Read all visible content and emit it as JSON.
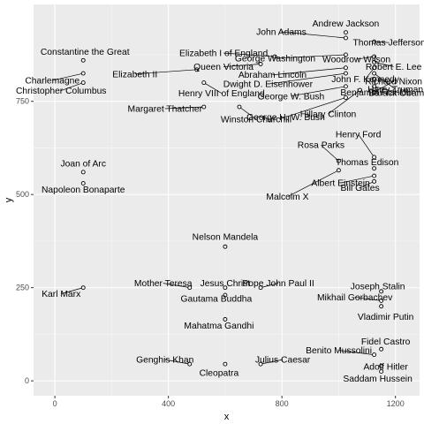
{
  "chart_data": {
    "type": "scatter",
    "title": "",
    "xlabel": "x",
    "ylabel": "y",
    "xlim": [
      -75,
      1285
    ],
    "ylim": [
      -40,
      1010
    ],
    "x_ticks": [
      0,
      400,
      800,
      1200
    ],
    "y_ticks": [
      0,
      250,
      500,
      750
    ],
    "grid": true,
    "colors": {
      "panel": "#ebebeb",
      "grid": "#ffffff",
      "point_fill": "#ffffff",
      "point_stroke": "#000000"
    },
    "points": [
      {
        "label": "Andrew Jackson",
        "x": 1025,
        "y": 935
      },
      {
        "label": "John Adams",
        "x": 1025,
        "y": 920
      },
      {
        "label": "Thomas Jefferson",
        "x": 1125,
        "y": 910
      },
      {
        "label": "George Washington",
        "x": 1025,
        "y": 875
      },
      {
        "label": "Woodrow Wilson",
        "x": 1125,
        "y": 870
      },
      {
        "label": "Elizabeth I of England",
        "x": 775,
        "y": 870
      },
      {
        "label": "Abraham Lincoln",
        "x": 1025,
        "y": 840
      },
      {
        "label": "Robert E. Lee",
        "x": 1125,
        "y": 855
      },
      {
        "label": "John F. Kennedy",
        "x": 1125,
        "y": 840
      },
      {
        "label": "Queen Victoria",
        "x": 725,
        "y": 850
      },
      {
        "label": "Harry Truman",
        "x": 1125,
        "y": 825
      },
      {
        "label": "Dwight D. Eisenhower",
        "x": 1025,
        "y": 825
      },
      {
        "label": "Benjamin Franklin",
        "x": 1125,
        "y": 810
      },
      {
        "label": "Constantine the Great",
        "x": 100,
        "y": 860
      },
      {
        "label": "Charlemagne",
        "x": 100,
        "y": 825
      },
      {
        "label": "Christopher Columbus",
        "x": 100,
        "y": 800
      },
      {
        "label": "Elizabeth II",
        "x": 500,
        "y": 835
      },
      {
        "label": "Henry VIII of England",
        "x": 525,
        "y": 800
      },
      {
        "label": "George W. Bush",
        "x": 1025,
        "y": 790
      },
      {
        "label": "Richard Nixon",
        "x": 1125,
        "y": 775
      },
      {
        "label": "Barack Obama",
        "x": 1125,
        "y": 790
      },
      {
        "label": "George H. W. Bush",
        "x": 1025,
        "y": 760
      },
      {
        "label": "Hillary Clinton",
        "x": 1075,
        "y": 780
      },
      {
        "label": "Margaret Thatcher",
        "x": 525,
        "y": 735
      },
      {
        "label": "Winston Churchill",
        "x": 650,
        "y": 735
      },
      {
        "label": "Henry Ford",
        "x": 1125,
        "y": 600
      },
      {
        "label": "Rosa Parks",
        "x": 1000,
        "y": 590
      },
      {
        "label": "Thomas Edison",
        "x": 1125,
        "y": 570
      },
      {
        "label": "Albert Einstein",
        "x": 1125,
        "y": 550
      },
      {
        "label": "Malcolm X",
        "x": 1000,
        "y": 565
      },
      {
        "label": "Bill Gates",
        "x": 1125,
        "y": 535
      },
      {
        "label": "Joan of Arc",
        "x": 100,
        "y": 560
      },
      {
        "label": "Napoleon Bonaparte",
        "x": 100,
        "y": 530
      },
      {
        "label": "Nelson Mandela",
        "x": 600,
        "y": 360
      },
      {
        "label": "Mother Teresa",
        "x": 475,
        "y": 250
      },
      {
        "label": "Jesus Christ",
        "x": 600,
        "y": 250
      },
      {
        "label": "Pope John Paul II",
        "x": 725,
        "y": 250
      },
      {
        "label": "Joseph Stalin",
        "x": 1150,
        "y": 240
      },
      {
        "label": "Karl Marx",
        "x": 100,
        "y": 250
      },
      {
        "label": "Gautama Buddha",
        "x": 600,
        "y": 230
      },
      {
        "label": "Mikhail Gorbachev",
        "x": 1150,
        "y": 215
      },
      {
        "label": "Vladimir Putin",
        "x": 1150,
        "y": 200
      },
      {
        "label": "Mahatma Gandhi",
        "x": 600,
        "y": 165
      },
      {
        "label": "Fidel Castro",
        "x": 1150,
        "y": 85
      },
      {
        "label": "Benito Mussolini",
        "x": 1125,
        "y": 70
      },
      {
        "label": "Adolf Hitler",
        "x": 1150,
        "y": 40
      },
      {
        "label": "Saddam Hussein",
        "x": 1150,
        "y": 25
      },
      {
        "label": "Genghis Khan",
        "x": 475,
        "y": 45
      },
      {
        "label": "Julius Caesar",
        "x": 725,
        "y": 45
      },
      {
        "label": "Cleopatra",
        "x": 600,
        "y": 45
      }
    ]
  }
}
